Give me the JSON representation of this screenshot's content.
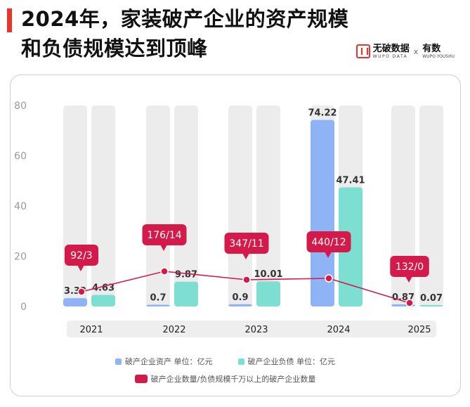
{
  "header": {
    "title": "2024年，家装破产企业的资产规模和负债规模达到顶峰",
    "brand_name": "无破数据",
    "brand_sub": "WUPO DATA",
    "brand_x": "x",
    "brand_partner": "有数",
    "brand_partner_sub": "WUPO YOUSHU"
  },
  "chart_data": {
    "type": "bar",
    "categories": [
      "2021",
      "2022",
      "2023",
      "2024",
      "2025"
    ],
    "ylim": [
      0,
      80
    ],
    "yticks": [
      0,
      20,
      40,
      60,
      80
    ],
    "series": [
      {
        "name": "破产企业资产 单位：亿元",
        "values": [
          3.33,
          0.7,
          0.9,
          74.22,
          0.87
        ],
        "color": "#8fb4f5"
      },
      {
        "name": "破产企业负债 单位：亿元",
        "values": [
          4.63,
          9.87,
          10.01,
          47.41,
          0.07
        ],
        "color": "#7ddfd2"
      }
    ],
    "line": {
      "name": "破产企业数量/负债规模千万以上的破产企业数量",
      "labels": [
        "92/3",
        "176/14",
        "347/11",
        "440/12",
        "132/0"
      ],
      "values": [
        92,
        176,
        347,
        440,
        132
      ],
      "color": "#d41a4a"
    },
    "background_bar_color": "#ececec",
    "grid": false,
    "legend_position": "bottom"
  }
}
